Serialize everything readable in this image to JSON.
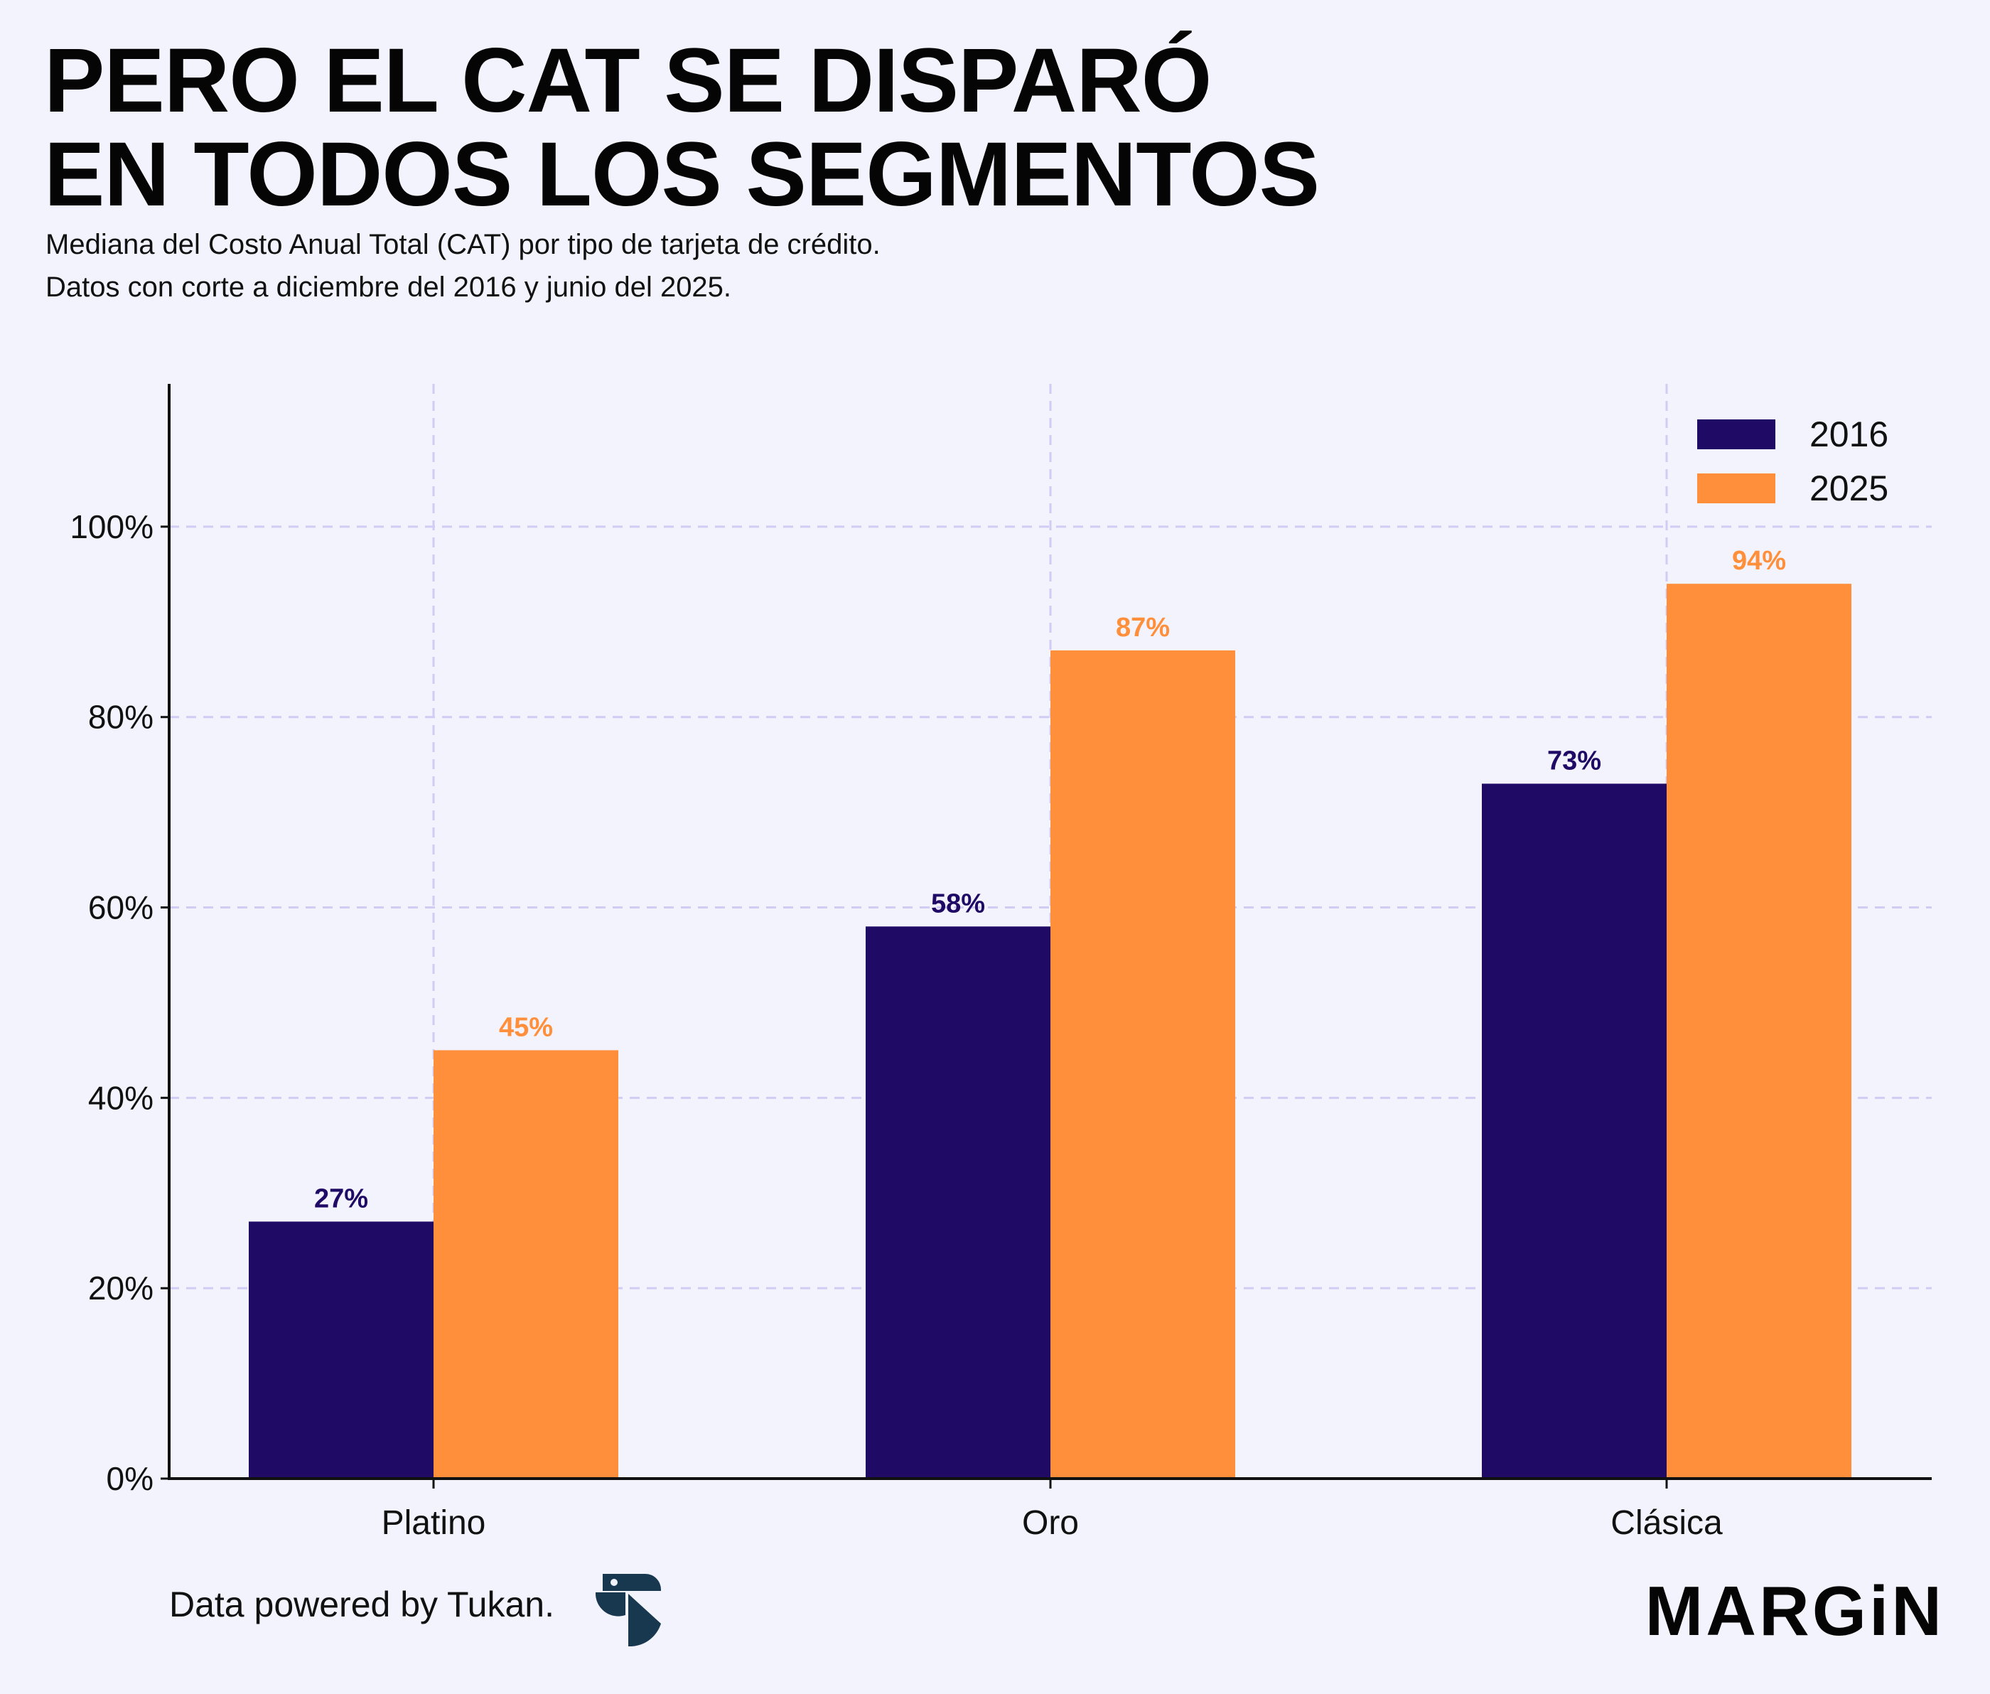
{
  "header": {
    "title_line1": "PERO EL CAT SE DISPARÓ",
    "title_line2": "EN TODOS LOS SEGMENTOS",
    "subtitle_line1": "Mediana del Costo Anual Total (CAT) por tipo de tarjeta de crédito.",
    "subtitle_line2": "Datos con corte a diciembre del 2016 y junio del 2025."
  },
  "footer": {
    "credit": "Data powered by Tukan.",
    "brand": "MARGiN"
  },
  "colors": {
    "series_2016": "#1f0b66",
    "series_2025": "#ff8f3a",
    "grid": "#cfcdf3",
    "axis": "#111111",
    "background": "#f3f3fd"
  },
  "chart_data": {
    "type": "bar",
    "title": "PERO EL CAT SE DISPARÓ EN TODOS LOS SEGMENTOS",
    "xlabel": "",
    "ylabel": "",
    "categories": [
      "Platino",
      "Oro",
      "Clásica"
    ],
    "series": [
      {
        "name": "2016",
        "values": [
          27,
          58,
          73
        ],
        "labels": [
          "27%",
          "58%",
          "73%"
        ]
      },
      {
        "name": "2025",
        "values": [
          45,
          87,
          94
        ],
        "labels": [
          "45%",
          "87%",
          "94%"
        ]
      }
    ],
    "ylim": [
      0,
      115
    ],
    "yticks": [
      0,
      20,
      40,
      60,
      80,
      100
    ],
    "ytick_labels": [
      "0%",
      "20%",
      "40%",
      "60%",
      "80%",
      "100%"
    ],
    "grid": true,
    "legend": "top-right"
  }
}
